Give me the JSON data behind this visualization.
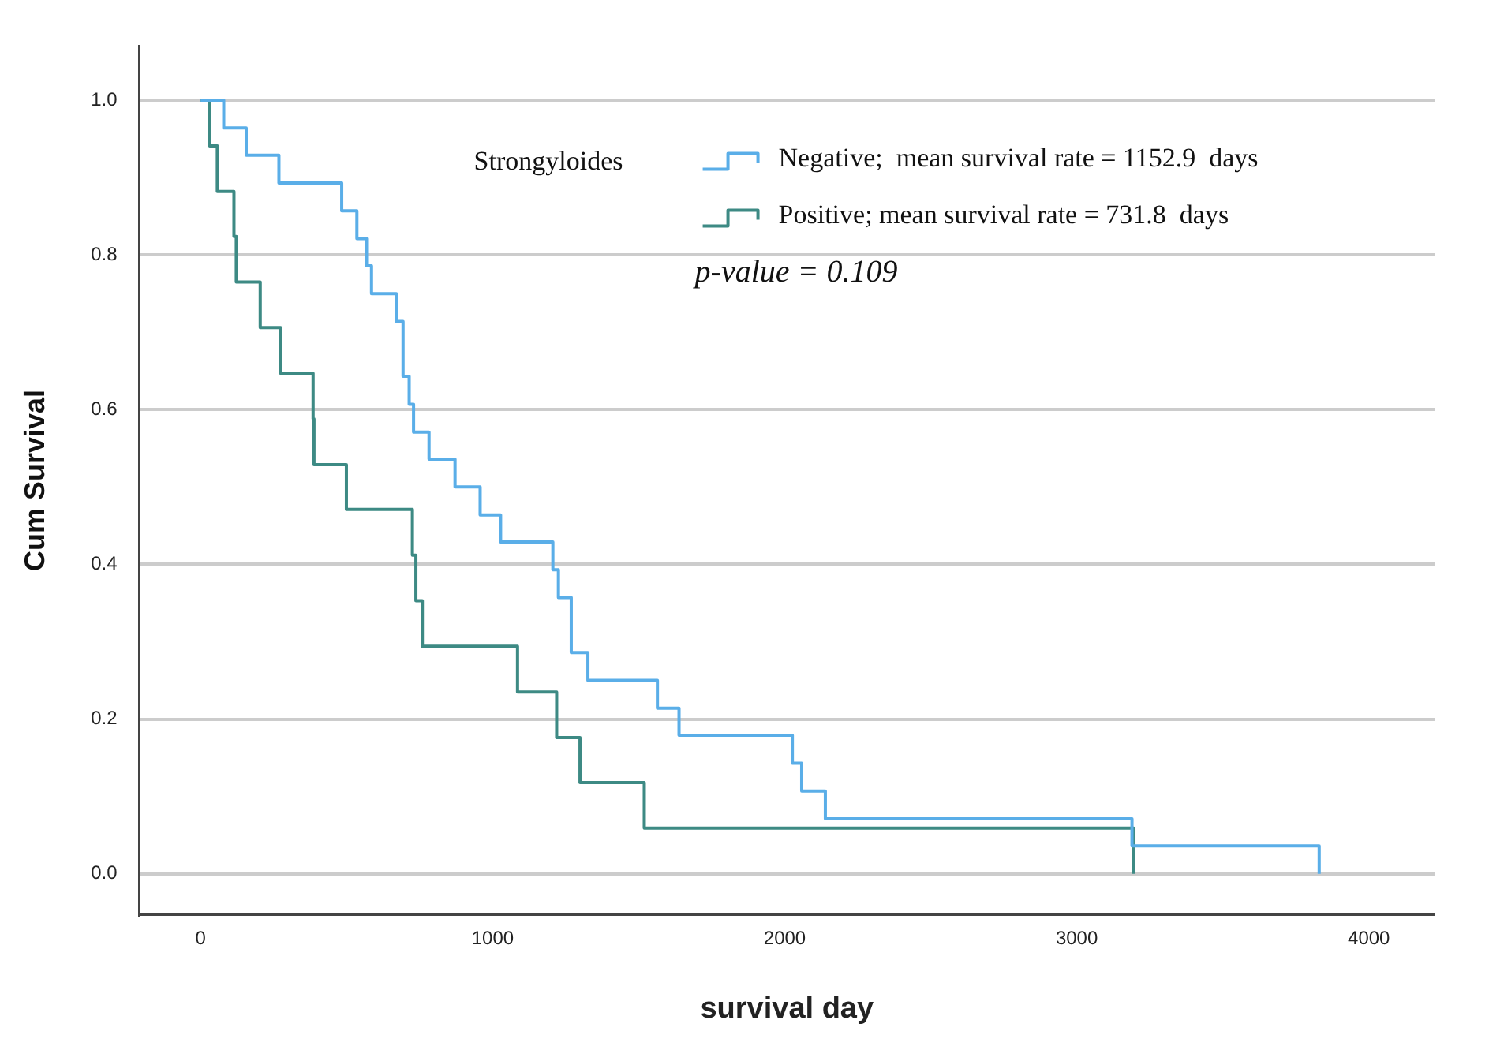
{
  "chart_data": {
    "type": "step",
    "xlabel": "survival day",
    "ylabel": "Cum Survival",
    "legend_title": "Strongyloides",
    "legend": "top right",
    "grid": "y",
    "marker": "none",
    "line_style": "solid",
    "xlim": [
      -210,
      4225
    ],
    "ylim": [
      -0.053,
      1.07
    ],
    "xticks": [
      0,
      1000,
      2000,
      3000,
      4000
    ],
    "yticks": [
      {
        "value": 0,
        "label": "0.0"
      },
      {
        "value": 0.2,
        "label": "0.2"
      },
      {
        "value": 0.4,
        "label": "0.4"
      },
      {
        "value": 0.6,
        "label": "0.6"
      },
      {
        "value": 0.8,
        "label": "0.8"
      },
      {
        "value": 1,
        "label": "1.0"
      }
    ],
    "series": [
      {
        "name": "Negative;  mean survival rate = 1152.9  days",
        "color": "#5aaee8",
        "x": [
          0,
          79,
          156,
          268,
          483,
          535,
          568,
          585,
          670,
          693,
          714,
          729,
          782,
          871,
          957,
          1027,
          1206,
          1225,
          1269,
          1326,
          1564,
          1638,
          2026,
          2058,
          2139,
          3189,
          3830
        ],
        "values": [
          1,
          0.964,
          0.929,
          0.893,
          0.857,
          0.821,
          0.786,
          0.75,
          0.714,
          0.643,
          0.607,
          0.571,
          0.536,
          0.5,
          0.464,
          0.429,
          0.393,
          0.357,
          0.286,
          0.25,
          0.214,
          0.179,
          0.143,
          0.107,
          0.071,
          0.036,
          0
        ]
      },
      {
        "name": "Positive; mean survival rate = 731.8  days",
        "color": "#3d8a84",
        "x": [
          0,
          31,
          57,
          114,
          122,
          204,
          274,
          385,
          388,
          499,
          725,
          737,
          759,
          1085,
          1219,
          1299,
          1519,
          3195
        ],
        "values": [
          1,
          0.941,
          0.882,
          0.824,
          0.765,
          0.706,
          0.647,
          0.588,
          0.529,
          0.471,
          0.412,
          0.353,
          0.294,
          0.235,
          0.176,
          0.118,
          0.059,
          0
        ]
      }
    ],
    "annotations": [
      "p-value = 0.109"
    ]
  }
}
